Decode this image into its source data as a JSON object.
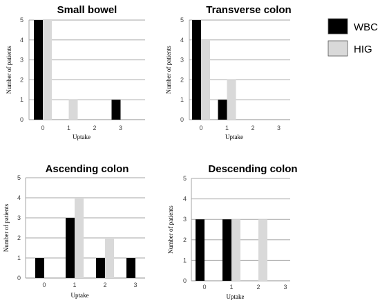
{
  "chart_data": [
    {
      "type": "bar",
      "title": "Small bowel",
      "categories": [
        "0",
        "1",
        "2",
        "3"
      ],
      "series": [
        {
          "name": "WBC",
          "values": [
            5,
            0,
            0,
            1
          ]
        },
        {
          "name": "HIG",
          "values": [
            5,
            1,
            0,
            0
          ]
        }
      ],
      "xlabel": "Uptake",
      "ylabel": "Number of patients",
      "ylim": [
        0,
        5
      ],
      "yticks": [
        "0",
        "1",
        "2",
        "3",
        "4",
        "5"
      ],
      "grid": true
    },
    {
      "type": "bar",
      "title": "Transverse colon",
      "categories": [
        "0",
        "1",
        "2",
        "3"
      ],
      "series": [
        {
          "name": "WBC",
          "values": [
            5,
            1,
            0,
            0
          ]
        },
        {
          "name": "HIG",
          "values": [
            4,
            2,
            0,
            0
          ]
        }
      ],
      "xlabel": "Uptake",
      "ylabel": "Number of patients",
      "ylim": [
        0,
        5
      ],
      "yticks": [
        "0",
        "1",
        "2",
        "3",
        "4",
        "5"
      ],
      "grid": true
    },
    {
      "type": "bar",
      "title": "Ascending colon",
      "categories": [
        "0",
        "1",
        "2",
        "3"
      ],
      "series": [
        {
          "name": "WBC",
          "values": [
            1,
            3,
            1,
            1
          ]
        },
        {
          "name": "HIG",
          "values": [
            0,
            4,
            2,
            0
          ]
        }
      ],
      "xlabel": "Uptake",
      "ylabel": "Number of patients",
      "ylim": [
        0,
        5
      ],
      "yticks": [
        "0",
        "1",
        "2",
        "3",
        "4",
        "5"
      ],
      "grid": true
    },
    {
      "type": "bar",
      "title": "Descending colon",
      "categories": [
        "0",
        "1",
        "2",
        "3"
      ],
      "series": [
        {
          "name": "WBC",
          "values": [
            3,
            3,
            0,
            0
          ]
        },
        {
          "name": "HIG",
          "values": [
            0,
            3,
            3,
            0
          ]
        }
      ],
      "xlabel": "Uptake",
      "ylabel": "Number of patients",
      "ylim": [
        0,
        5
      ],
      "yticks": [
        "0",
        "1",
        "2",
        "3",
        "4",
        "5"
      ],
      "grid": true
    }
  ],
  "legend": {
    "placement": "top-right",
    "items": [
      {
        "label": "WBC",
        "color": "#000000"
      },
      {
        "label": "HIG",
        "color": "#d9d9d9"
      }
    ]
  },
  "colors": {
    "WBC": "#000000",
    "HIG": "#d9d9d9",
    "grid": "#a6a6a6"
  }
}
